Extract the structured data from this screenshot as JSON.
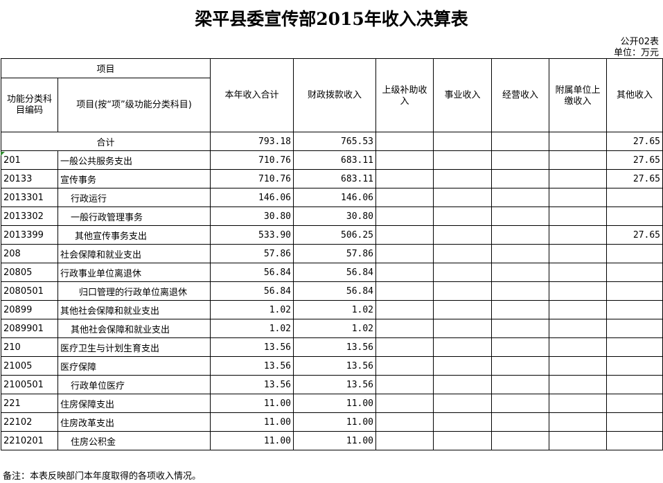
{
  "title": "梁平县委宣传部2015年收入决算表",
  "form_no": "公开02表",
  "unit": "单位：万元",
  "headers": {
    "project": "项目",
    "code": "功能分类科目编码",
    "name": "项目(按“项”级功能分类科目)",
    "total": "本年收入合计",
    "fiscal": "财政拨款收入",
    "superior": "上级补助收入",
    "business": "事业收入",
    "operating": "经营收入",
    "affiliate": "附属单位上缴收入",
    "other": "其他收入"
  },
  "total_row": {
    "label": "合计",
    "total": "793.18",
    "fiscal": "765.53",
    "other": "27.65"
  },
  "rows": [
    {
      "code": "201",
      "name": "一般公共服务支出",
      "total": "710.76",
      "fiscal": "683.11",
      "other": "27.65"
    },
    {
      "code": "20133",
      "name": "宣传事务",
      "total": "710.76",
      "fiscal": "683.11",
      "other": "27.65"
    },
    {
      "code": "2013301",
      "name": "行政运行",
      "total": "146.06",
      "fiscal": "146.06",
      "other": ""
    },
    {
      "code": "2013302",
      "name": "一般行政管理事务",
      "total": "30.80",
      "fiscal": "30.80",
      "other": ""
    },
    {
      "code": "2013399",
      "name": "其他宣传事务支出",
      "total": "533.90",
      "fiscal": "506.25",
      "other": "27.65"
    },
    {
      "code": "208",
      "name": "社会保障和就业支出",
      "total": "57.86",
      "fiscal": "57.86",
      "other": ""
    },
    {
      "code": "20805",
      "name": "行政事业单位离退休",
      "total": "56.84",
      "fiscal": "56.84",
      "other": ""
    },
    {
      "code": "2080501",
      "name": "归口管理的行政单位离退休",
      "total": "56.84",
      "fiscal": "56.84",
      "other": ""
    },
    {
      "code": "20899",
      "name": "其他社会保障和就业支出",
      "total": "1.02",
      "fiscal": "1.02",
      "other": ""
    },
    {
      "code": "2089901",
      "name": "其他社会保障和就业支出",
      "total": "1.02",
      "fiscal": "1.02",
      "other": ""
    },
    {
      "code": "210",
      "name": "医疗卫生与计划生育支出",
      "total": "13.56",
      "fiscal": "13.56",
      "other": ""
    },
    {
      "code": "21005",
      "name": "医疗保障",
      "total": "13.56",
      "fiscal": "13.56",
      "other": ""
    },
    {
      "code": "2100501",
      "name": "行政单位医疗",
      "total": "13.56",
      "fiscal": "13.56",
      "other": ""
    },
    {
      "code": "221",
      "name": "住房保障支出",
      "total": "11.00",
      "fiscal": "11.00",
      "other": ""
    },
    {
      "code": "22102",
      "name": "住房改革支出",
      "total": "11.00",
      "fiscal": "11.00",
      "other": ""
    },
    {
      "code": "2210201",
      "name": "住房公积金",
      "total": "11.00",
      "fiscal": "11.00",
      "other": ""
    }
  ],
  "footnote": "备注：本表反映部门本年度取得的各项收入情况。"
}
